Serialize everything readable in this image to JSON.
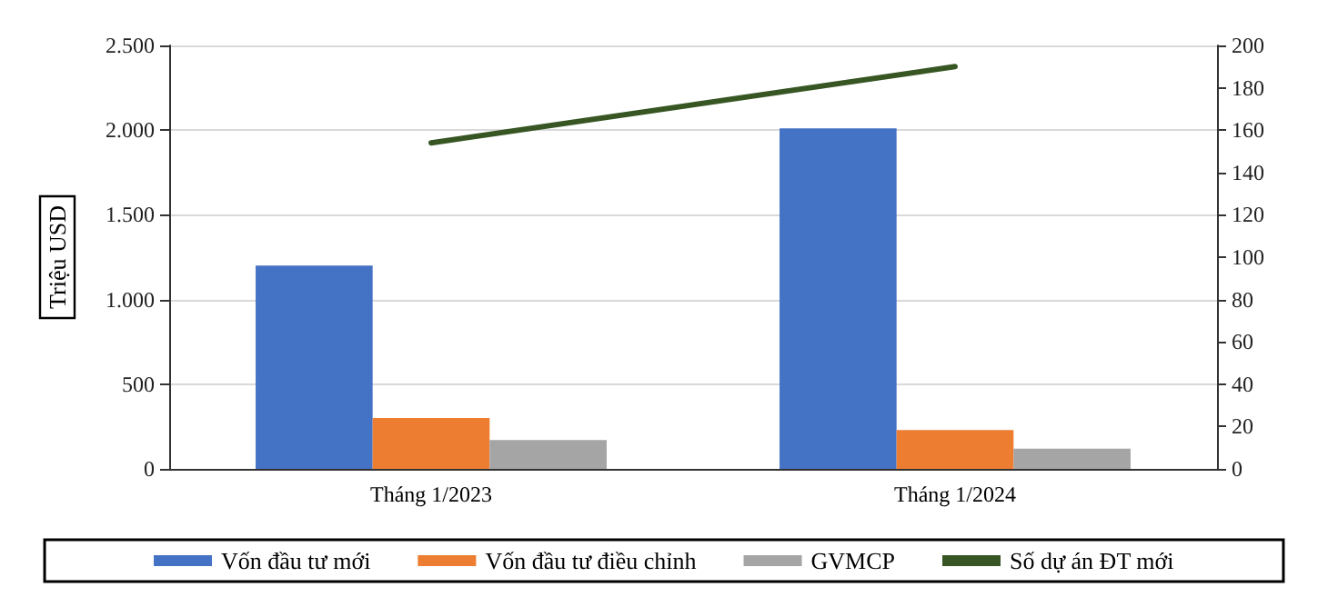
{
  "chart_data": {
    "type": "bar",
    "ylabel": "Triệu USD",
    "categories": [
      "Tháng 1/2023",
      "Tháng 1/2024"
    ],
    "series": [
      {
        "name": "Vốn đầu tư mới",
        "color": "#4472c4",
        "values": [
          1200,
          2010
        ]
      },
      {
        "name": "Vốn đầu tư điều chỉnh",
        "color": "#ed7d31",
        "values": [
          300,
          230
        ]
      },
      {
        "name": "GVMCP",
        "color": "#a5a5a5",
        "values": [
          170,
          120
        ]
      },
      {
        "name": "Số dự án ĐT mới",
        "type": "line",
        "axis": "y2",
        "color": "#375623",
        "values": [
          154,
          190
        ],
        "marker": "none"
      }
    ],
    "ylim": [
      0,
      2500
    ],
    "yticks": [
      0,
      500,
      {
        "value": 1000,
        "label": "1.000"
      },
      {
        "value": 1500,
        "label": "1.500"
      },
      {
        "value": 2000,
        "label": "2.000"
      },
      {
        "value": 2500,
        "label": "2.500"
      }
    ],
    "y2lim": [
      0,
      200
    ],
    "y2ticks": [
      0,
      20,
      40,
      60,
      80,
      100,
      120,
      140,
      160,
      180,
      200
    ],
    "grid": "y",
    "legend": "bottom"
  }
}
